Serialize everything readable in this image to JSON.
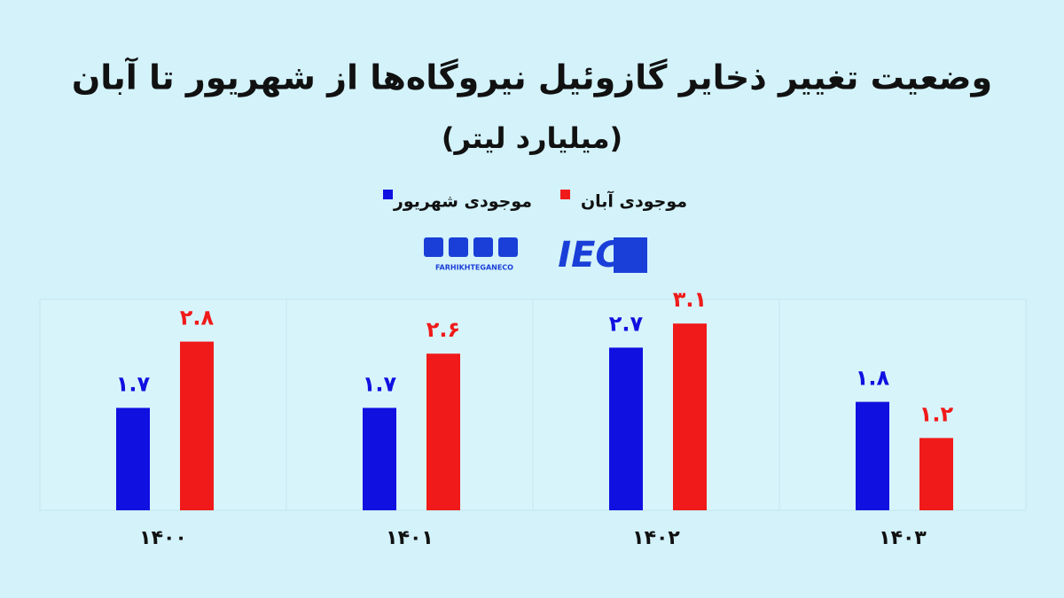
{
  "chart_data": {
    "type": "bar",
    "title": "وضعیت تغییر ذخایر گازوئیل نیروگاه‌ها از شهریور تا آبان",
    "subtitle": "(میلیارد لیتر)",
    "brand": "FARHIKHTEGANECO",
    "logo": "IEC",
    "categories": [
      "۱۴۰۰",
      "۱۴۰۱",
      "۱۴۰۲",
      "۱۴۰۳"
    ],
    "series": [
      {
        "name": "موجودی شهریور",
        "color": "#1010e0",
        "values": [
          1.7,
          1.7,
          2.7,
          1.8
        ],
        "value_labels": [
          "۱.۷",
          "۱.۷",
          "۲.۷",
          "۱.۸"
        ]
      },
      {
        "name": "موجودی آبان",
        "color": "#f01a1a",
        "values": [
          2.8,
          2.6,
          3.1,
          1.2
        ],
        "value_labels": [
          "۲.۸",
          "۲.۶",
          "۳.۱",
          "۱.۲"
        ]
      }
    ],
    "ylim": [
      0,
      3.5
    ]
  }
}
